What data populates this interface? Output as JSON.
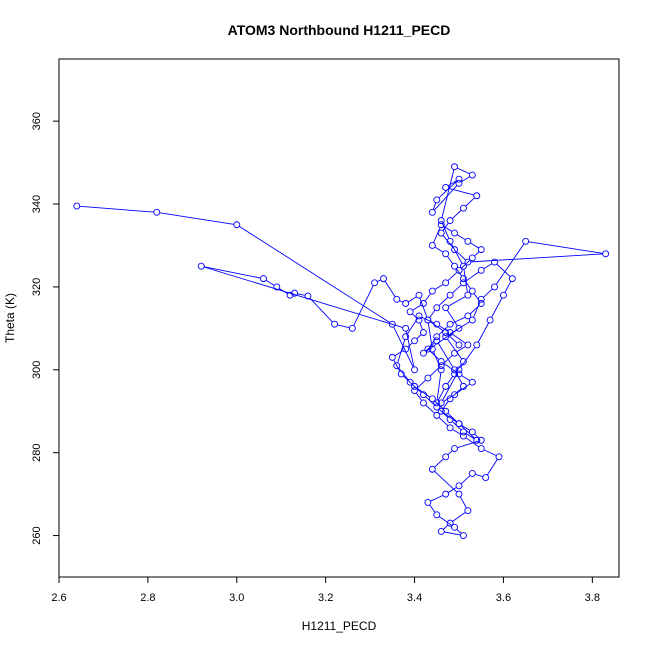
{
  "chart_data": {
    "type": "scatter",
    "title": "ATOM3 Northbound H1211_PECD",
    "xlabel": "H1211_PECD",
    "ylabel": "Theta (K)",
    "xlim": [
      2.6,
      3.86
    ],
    "ylim": [
      250,
      375
    ],
    "xticks": [
      "2.6",
      "2.8",
      "3.0",
      "3.2",
      "3.4",
      "3.6",
      "3.8"
    ],
    "yticks": [
      "260",
      "280",
      "300",
      "320",
      "340",
      "360"
    ],
    "grid": false,
    "legend": "none",
    "line_color": "#0000ff",
    "marker": "open-circle",
    "series": [
      {
        "x": [
          2.64,
          2.82,
          3.0,
          3.35,
          3.4,
          3.38,
          2.92,
          3.06,
          3.09,
          3.12,
          3.13,
          3.16,
          3.22,
          3.26,
          3.31,
          3.33,
          3.36,
          3.38,
          3.41,
          3.43,
          3.44,
          3.46,
          3.45,
          3.47,
          3.49,
          3.51,
          3.47,
          3.53,
          3.55,
          3.58,
          3.65,
          3.83,
          3.52,
          3.49,
          3.46,
          3.48,
          3.51,
          3.54,
          3.47,
          3.5,
          3.45,
          3.44,
          3.5,
          3.53,
          3.49,
          3.46,
          3.48,
          3.51,
          3.52,
          3.47,
          3.5,
          3.42,
          3.45,
          3.49,
          3.51,
          3.48,
          3.46,
          3.5,
          3.53,
          3.55,
          3.49,
          3.47,
          3.44,
          3.5,
          3.52,
          3.48,
          3.46,
          3.51,
          3.49,
          3.45,
          3.43,
          3.47,
          3.5,
          3.53,
          3.56,
          3.59,
          3.55,
          3.51,
          3.48,
          3.45,
          3.42,
          3.4,
          3.43,
          3.46,
          3.49,
          3.52,
          3.48,
          3.45,
          3.41,
          3.38,
          3.36,
          3.39,
          3.42,
          3.45,
          3.48,
          3.51,
          3.54,
          3.5,
          3.47,
          3.44,
          3.4,
          3.37,
          3.35,
          3.38,
          3.4,
          3.42,
          3.41,
          3.39,
          3.42,
          3.44,
          3.47,
          3.5,
          3.53,
          3.55,
          3.52,
          3.49,
          3.46,
          3.44,
          3.47,
          3.49,
          3.51,
          3.53,
          3.55,
          3.52,
          3.48,
          3.45,
          3.43,
          3.46,
          3.5,
          3.53,
          3.49,
          3.46,
          3.5,
          3.54,
          3.57,
          3.6,
          3.62,
          3.58,
          3.55,
          3.51,
          3.48,
          3.45,
          3.43,
          3.47,
          3.5
        ],
        "y": [
          339.5,
          338,
          335,
          311,
          300,
          310,
          325,
          322,
          320,
          318,
          318.5,
          317.8,
          311,
          310,
          321,
          322,
          317,
          316,
          318,
          312,
          305,
          300,
          292,
          296,
          299,
          302,
          308,
          312,
          317,
          320,
          331,
          328,
          326,
          329,
          333,
          336,
          339,
          342,
          344,
          346,
          341,
          338,
          345,
          347,
          349,
          336,
          331,
          325,
          318,
          315,
          310,
          304,
          307,
          300,
          296,
          293,
          290,
          287,
          285,
          283,
          281,
          279,
          276,
          270,
          266,
          263,
          261,
          260,
          262,
          265,
          268,
          270,
          272,
          275,
          274,
          279,
          281,
          284,
          286,
          289,
          292,
          295,
          298,
          301,
          304,
          306,
          309,
          311,
          313,
          308,
          301,
          297,
          294,
          291,
          288,
          285,
          283,
          287,
          290,
          293,
          296,
          299,
          303,
          305,
          307,
          309,
          312,
          314,
          316,
          319,
          321,
          324,
          327,
          329,
          331,
          333,
          335,
          330,
          328,
          325,
          322,
          319,
          316,
          313,
          311,
          308,
          305,
          302,
          299,
          297,
          294,
          292,
          300,
          306,
          312,
          318,
          322,
          326,
          324,
          321,
          318,
          315,
          312,
          309,
          306
        ]
      }
    ]
  }
}
